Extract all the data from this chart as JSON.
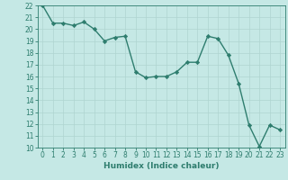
{
  "xlabel": "Humidex (Indice chaleur)",
  "ylabel": "",
  "x": [
    0,
    1,
    2,
    3,
    4,
    5,
    6,
    7,
    8,
    9,
    10,
    11,
    12,
    13,
    14,
    15,
    16,
    17,
    18,
    19,
    20,
    21,
    22,
    23
  ],
  "y": [
    22,
    20.5,
    20.5,
    20.3,
    20.6,
    20.0,
    19.0,
    19.3,
    19.4,
    16.4,
    15.9,
    16.0,
    16.0,
    16.4,
    17.2,
    17.2,
    19.4,
    19.2,
    17.8,
    15.4,
    11.9,
    10.1,
    11.9,
    11.5
  ],
  "line_color": "#2e7d6e",
  "marker": "D",
  "markersize": 2.2,
  "linewidth": 1.0,
  "bg_color": "#c5e8e5",
  "grid_color": "#afd4d0",
  "tick_color": "#2e7d6e",
  "label_color": "#2e7d6e",
  "ylim": [
    10,
    22
  ],
  "xlim": [
    -0.5,
    23.5
  ],
  "yticks": [
    10,
    11,
    12,
    13,
    14,
    15,
    16,
    17,
    18,
    19,
    20,
    21,
    22
  ],
  "xticks": [
    0,
    1,
    2,
    3,
    4,
    5,
    6,
    7,
    8,
    9,
    10,
    11,
    12,
    13,
    14,
    15,
    16,
    17,
    18,
    19,
    20,
    21,
    22,
    23
  ],
  "axis_label_fontsize": 6.5,
  "tick_fontsize": 5.5
}
